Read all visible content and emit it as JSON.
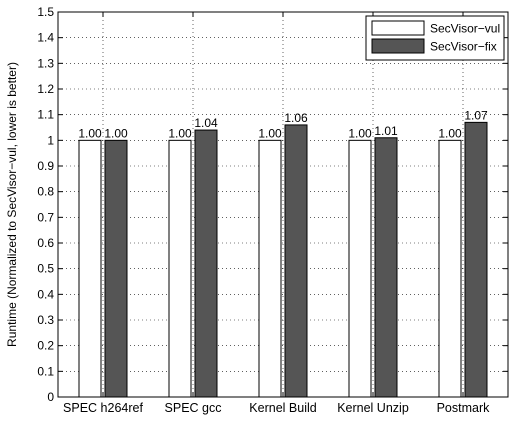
{
  "chart_data": {
    "type": "bar",
    "title": "",
    "xlabel": "",
    "ylabel": "Runtime (Normalized to SecVisor−vul, lower is better)",
    "ylim": [
      0,
      1.5
    ],
    "yticks": [
      "0",
      "0.1",
      "0.2",
      "0.3",
      "0.4",
      "0.5",
      "0.6",
      "0.7",
      "0.8",
      "0.9",
      "1",
      "1.1",
      "1.2",
      "1.3",
      "1.4",
      "1.5"
    ],
    "grid": "dotted",
    "legend_position": "top-right",
    "categories": [
      "SPEC h264ref",
      "SPEC gcc",
      "Kernel Build",
      "Kernel Unzip",
      "Postmark"
    ],
    "series": [
      {
        "name": "SecVisor−vul",
        "color": "#ffffff",
        "values": [
          1.0,
          1.0,
          1.0,
          1.0,
          1.0
        ],
        "labels": [
          "1.00",
          "1.00",
          "1.00",
          "1.00",
          "1.00"
        ]
      },
      {
        "name": "SecVisor−fix",
        "color": "#555555",
        "values": [
          1.0,
          1.04,
          1.06,
          1.01,
          1.07
        ],
        "labels": [
          "1.00",
          "1.04",
          "1.06",
          "1.01",
          "1.07"
        ]
      }
    ]
  }
}
